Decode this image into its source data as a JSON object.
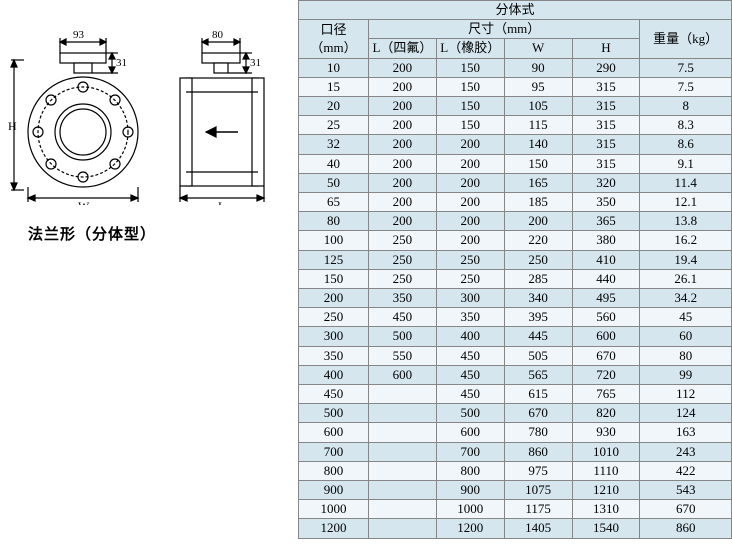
{
  "diagram": {
    "dim_93": "93",
    "dim_31a": "31",
    "dim_80": "80",
    "dim_31b": "31",
    "label_H": "H",
    "label_W": "W",
    "label_L": "L",
    "caption": "法兰形（分体型）"
  },
  "table": {
    "title": "分体式",
    "header_diameter": "口径（mm）",
    "header_dim": "尺寸（mm）",
    "header_weight": "重量（kg）",
    "sub_L_ptfe": "L（四氟）",
    "sub_L_rubber": "L（橡胶）",
    "sub_W": "W",
    "sub_H": "H",
    "rows": [
      [
        "10",
        "200",
        "150",
        "90",
        "290",
        "7.5"
      ],
      [
        "15",
        "200",
        "150",
        "95",
        "315",
        "7.5"
      ],
      [
        "20",
        "200",
        "150",
        "105",
        "315",
        "8"
      ],
      [
        "25",
        "200",
        "150",
        "115",
        "315",
        "8.3"
      ],
      [
        "32",
        "200",
        "200",
        "140",
        "315",
        "8.6"
      ],
      [
        "40",
        "200",
        "200",
        "150",
        "315",
        "9.1"
      ],
      [
        "50",
        "200",
        "200",
        "165",
        "320",
        "11.4"
      ],
      [
        "65",
        "200",
        "200",
        "185",
        "350",
        "12.1"
      ],
      [
        "80",
        "200",
        "200",
        "200",
        "365",
        "13.8"
      ],
      [
        "100",
        "250",
        "200",
        "220",
        "380",
        "16.2"
      ],
      [
        "125",
        "250",
        "250",
        "250",
        "410",
        "19.4"
      ],
      [
        "150",
        "250",
        "250",
        "285",
        "440",
        "26.1"
      ],
      [
        "200",
        "350",
        "300",
        "340",
        "495",
        "34.2"
      ],
      [
        "250",
        "450",
        "350",
        "395",
        "560",
        "45"
      ],
      [
        "300",
        "500",
        "400",
        "445",
        "600",
        "60"
      ],
      [
        "350",
        "550",
        "450",
        "505",
        "670",
        "80"
      ],
      [
        "400",
        "600",
        "450",
        "565",
        "720",
        "99"
      ],
      [
        "450",
        "",
        "450",
        "615",
        "765",
        "112"
      ],
      [
        "500",
        "",
        "500",
        "670",
        "820",
        "124"
      ],
      [
        "600",
        "",
        "600",
        "780",
        "930",
        "163"
      ],
      [
        "700",
        "",
        "700",
        "860",
        "1010",
        "243"
      ],
      [
        "800",
        "",
        "800",
        "975",
        "1110",
        "422"
      ],
      [
        "900",
        "",
        "900",
        "1075",
        "1210",
        "543"
      ],
      [
        "1000",
        "",
        "1000",
        "1175",
        "1310",
        "670"
      ],
      [
        "1200",
        "",
        "1200",
        "1405",
        "1540",
        "860"
      ]
    ]
  },
  "colors": {
    "stroke": "#000000",
    "fill_light": "#ffffff"
  }
}
